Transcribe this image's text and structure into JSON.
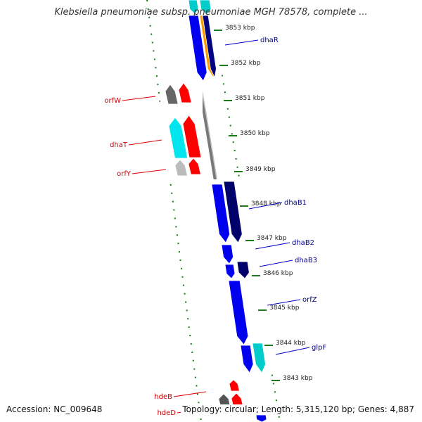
{
  "title": "Klebsiella pneumoniae subsp. pneumoniae MGH 78578, complete ...",
  "footer": {
    "accession": "Accession: NC_009648",
    "summary": "Topology: circular; Length: 5,315,120 bp; Genes: 4,887"
  },
  "colors": {
    "forward_gene": "#0000ee",
    "reverse_gene": "#ff0000",
    "forward_label": "#00008b",
    "reverse_label": "#cc0000",
    "backbone": "#888888",
    "tick": "#1a7a1a"
  },
  "scale": {
    "unit": "kbp",
    "ticks": [
      {
        "label": "3853 kbp"
      },
      {
        "label": "3852 kbp"
      },
      {
        "label": "3851 kbp"
      },
      {
        "label": "3850 kbp"
      },
      {
        "label": "3849 kbp"
      },
      {
        "label": "3848 kbp"
      },
      {
        "label": "3847 kbp"
      },
      {
        "label": "3846 kbp"
      },
      {
        "label": "3845 kbp"
      },
      {
        "label": "3844 kbp"
      },
      {
        "label": "3843 kbp"
      }
    ]
  },
  "genes": {
    "forward_strand": [
      {
        "name": "dhaR"
      },
      {
        "name": "dhaB1"
      },
      {
        "name": "dhaB2"
      },
      {
        "name": "dhaB3"
      },
      {
        "name": "orfZ"
      },
      {
        "name": "glpF"
      }
    ],
    "reverse_strand": [
      {
        "name": "orfW"
      },
      {
        "name": "dhaT"
      },
      {
        "name": "orfY"
      },
      {
        "name": "hdeB"
      },
      {
        "name": "hdeD"
      }
    ]
  }
}
